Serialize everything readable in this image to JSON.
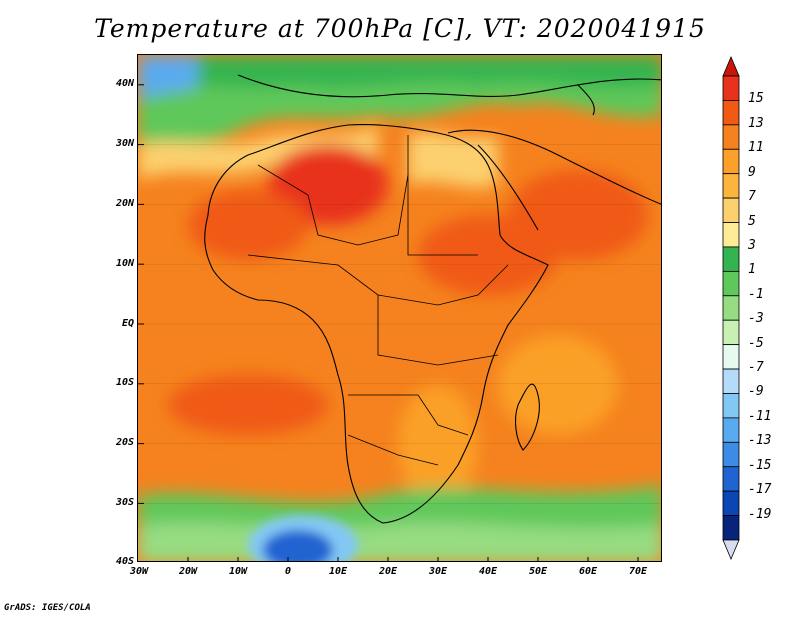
{
  "title": "Temperature at 700hPa [C], VT: 2020041915",
  "footer": "GrADS: IGES/COLA",
  "map": {
    "projection": "lat-lon",
    "lon_range": [
      -30,
      75
    ],
    "lat_range": [
      -40,
      45
    ],
    "lat_ticks": [
      "40N",
      "30N",
      "20N",
      "10N",
      "EQ",
      "10S",
      "20S",
      "30S",
      "40S"
    ],
    "lon_ticks": [
      "30W",
      "20W",
      "10W",
      "0",
      "10E",
      "20E",
      "30E",
      "40E",
      "50E",
      "60E",
      "70E"
    ],
    "variable": "Temperature at 700hPa",
    "units": "C",
    "valid_time": "2020041915",
    "dominant_field": "warm",
    "warmest_regions": [
      "Sahara / Algeria-Libya",
      "Sudan / Ethiopia",
      "Arabian Peninsula",
      "South Atlantic ~15S"
    ],
    "coldest_regions": [
      "South Atlantic near 35S 5E",
      "NW corner near 42N 30W",
      "Mediterranean / Europe"
    ]
  },
  "colorbar": {
    "labels": [
      "15",
      "13",
      "11",
      "9",
      "7",
      "5",
      "3",
      "1",
      "-1",
      "-3",
      "-5",
      "-7",
      "-9",
      "-11",
      "-13",
      "-15",
      "-17",
      "-19"
    ],
    "colors": [
      "#e8321e",
      "#f05a14",
      "#f5821e",
      "#fba028",
      "#fbb43c",
      "#fcd06e",
      "#fdeb96",
      "#34b450",
      "#5fc85a",
      "#96dc82",
      "#c8f0b4",
      "#e6faf0",
      "#b4dcfa",
      "#82c8f5",
      "#5aaaf0",
      "#3c8ce6",
      "#2064d2",
      "#0a46b4",
      "#08237a"
    ],
    "top_triangle_color": "#c8160a",
    "bottom_triangle_color": "#d8dcf0"
  }
}
